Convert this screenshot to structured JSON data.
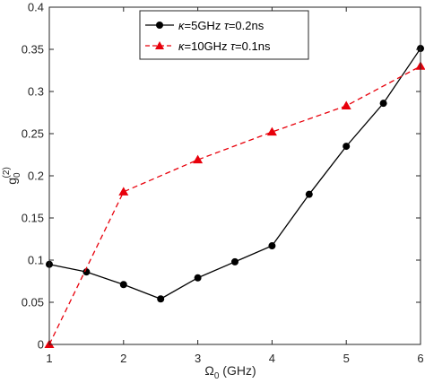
{
  "chart_data": {
    "type": "line",
    "title": "",
    "xlabel_main": "Ω",
    "xlabel_sub": "0",
    "xlabel_unit": "  (GHz)",
    "ylabel_main": "g",
    "ylabel_sub": "0",
    "ylabel_sup": "(2)",
    "xlim": [
      1,
      6
    ],
    "ylim": [
      0,
      0.4
    ],
    "xticks": [
      1,
      2,
      3,
      4,
      5,
      6
    ],
    "yticks": [
      0,
      0.05,
      0.1,
      0.15,
      0.2,
      0.25,
      0.3,
      0.35,
      0.4
    ],
    "xtick_labels": [
      "1",
      "2",
      "3",
      "4",
      "5",
      "6"
    ],
    "ytick_labels": [
      "0",
      "0.05",
      "0.1",
      "0.15",
      "0.2",
      "0.25",
      "0.3",
      "0.35",
      "0.4"
    ],
    "grid": false,
    "legend_position": "top-center",
    "series": [
      {
        "name_parts": [
          "κ",
          "=5GHz ",
          "τ",
          "=0.2ns"
        ],
        "color": "#000000",
        "line_style": "solid",
        "marker": "circle",
        "x": [
          1,
          1.5,
          2,
          2.5,
          3,
          3.5,
          4,
          4.5,
          5,
          5.5,
          6
        ],
        "y": [
          0.095,
          0.086,
          0.071,
          0.054,
          0.079,
          0.098,
          0.117,
          0.178,
          0.235,
          0.286,
          0.351
        ]
      },
      {
        "name_parts": [
          "κ",
          "=10GHz ",
          "τ",
          "=0.1ns"
        ],
        "color": "#e8000b",
        "line_style": "dashed",
        "marker": "triangle",
        "x": [
          1,
          2,
          3,
          4,
          5,
          6
        ],
        "y": [
          0.0,
          0.181,
          0.219,
          0.252,
          0.283,
          0.33
        ]
      }
    ]
  }
}
